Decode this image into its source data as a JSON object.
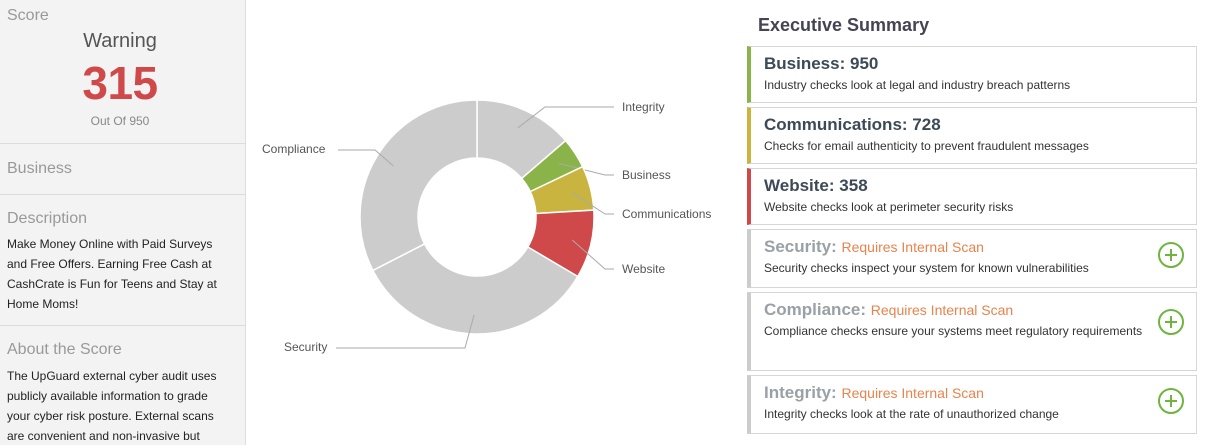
{
  "sidebar": {
    "score_title": "Score",
    "status": "Warning",
    "score": "315",
    "out_of": "Out Of 950",
    "business_title": "Business",
    "description_title": "Description",
    "description_text": "Make Money Online with Paid Surveys and Free Offers. Earning Free Cash at CashCrate is Fun for Teens and Stay at Home Moms!",
    "about_title": "About the Score",
    "about_text": "The UpGuard external cyber audit uses publicly available information to grade your cyber risk posture. External scans are convenient and non-invasive but"
  },
  "chart_data": {
    "type": "pie",
    "donut": true,
    "labels": [
      "Integrity",
      "Business",
      "Communications",
      "Website",
      "Security",
      "Compliance"
    ],
    "values": [
      2.9,
      0.9,
      1.3,
      2.0,
      7.2,
      6.9
    ],
    "colors": [
      "#cccccc",
      "#8ab349",
      "#c8b43e",
      "#d0494a",
      "#cccccc",
      "#cccccc"
    ]
  },
  "summary": {
    "title": "Executive Summary",
    "requires_text": "Requires Internal Scan",
    "cards": [
      {
        "name": "Business:",
        "score": "950",
        "desc": "Industry checks look at legal and industry breach patterns",
        "color": "#8ab349"
      },
      {
        "name": "Communications:",
        "score": "728",
        "desc": "Checks for email authenticity to prevent fraudulent messages",
        "color": "#c8b43e"
      },
      {
        "name": "Website:",
        "score": "358",
        "desc": "Website checks look at perimeter security risks",
        "color": "#d0494a"
      },
      {
        "name": "Security:",
        "desc": "Security checks inspect your system for known vulnerabilities",
        "color": "#cccccc"
      },
      {
        "name": "Compliance:",
        "desc": "Compliance checks ensure your systems meet regulatory requirements",
        "color": "#cccccc"
      },
      {
        "name": "Integrity:",
        "desc": "Integrity checks look at the rate of unauthorized change",
        "color": "#cccccc"
      }
    ]
  }
}
